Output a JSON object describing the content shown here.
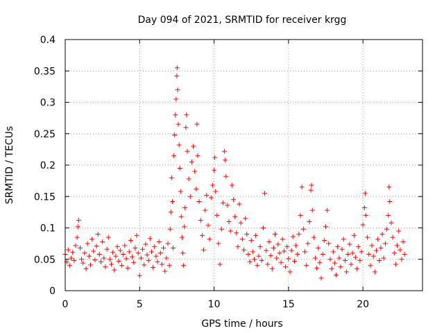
{
  "chart_data": {
    "type": "scatter",
    "title": "Day 094 of 2021, SRMTID for receiver krgg",
    "xlabel": "GPS time / hours",
    "ylabel": "SRMTID / TECUs",
    "xlim": [
      0,
      24
    ],
    "ylim": [
      0,
      0.4
    ],
    "x_ticks": [
      0,
      5,
      10,
      15,
      20
    ],
    "x_tick_labels": [
      "0",
      "5",
      "10",
      "15",
      "20"
    ],
    "y_ticks": [
      0,
      0.05,
      0.1,
      0.15,
      0.2,
      0.25,
      0.3,
      0.35,
      0.4
    ],
    "y_tick_labels": [
      "0",
      "0.05",
      "0.1",
      "0.15",
      "0.2",
      "0.25",
      "0.3",
      "0.35",
      "0.4"
    ],
    "grid": true,
    "marker": "+",
    "color": "#ff0000",
    "series": [
      {
        "name": "SRMTID krgg",
        "points": [
          [
            0.0,
            0.058
          ],
          [
            0.1,
            0.046
          ],
          [
            0.2,
            0.065
          ],
          [
            0.3,
            0.04
          ],
          [
            0.4,
            0.052
          ],
          [
            0.5,
            0.061
          ],
          [
            0.6,
            0.048
          ],
          [
            0.7,
            0.072
          ],
          [
            0.8,
            0.085
          ],
          [
            0.85,
            0.102
          ],
          [
            0.9,
            0.112
          ],
          [
            1.0,
            0.068
          ],
          [
            1.1,
            0.05
          ],
          [
            1.2,
            0.044
          ],
          [
            1.3,
            0.06
          ],
          [
            1.4,
            0.035
          ],
          [
            1.5,
            0.075
          ],
          [
            1.6,
            0.055
          ],
          [
            1.7,
            0.041
          ],
          [
            1.8,
            0.082
          ],
          [
            1.9,
            0.063
          ],
          [
            2.0,
            0.049
          ],
          [
            2.1,
            0.071
          ],
          [
            2.2,
            0.09
          ],
          [
            2.3,
            0.058
          ],
          [
            2.4,
            0.046
          ],
          [
            2.5,
            0.078
          ],
          [
            2.6,
            0.052
          ],
          [
            2.7,
            0.038
          ],
          [
            2.8,
            0.066
          ],
          [
            2.9,
            0.085
          ],
          [
            3.0,
            0.05
          ],
          [
            3.1,
            0.042
          ],
          [
            3.2,
            0.061
          ],
          [
            3.3,
            0.033
          ],
          [
            3.4,
            0.055
          ],
          [
            3.5,
            0.07
          ],
          [
            3.6,
            0.047
          ],
          [
            3.7,
            0.064
          ],
          [
            3.8,
            0.04
          ],
          [
            3.9,
            0.058
          ],
          [
            4.0,
            0.072
          ],
          [
            4.1,
            0.051
          ],
          [
            4.2,
            0.036
          ],
          [
            4.3,
            0.062
          ],
          [
            4.4,
            0.08
          ],
          [
            4.5,
            0.054
          ],
          [
            4.6,
            0.045
          ],
          [
            4.7,
            0.068
          ],
          [
            4.8,
            0.088
          ],
          [
            4.9,
            0.06
          ],
          [
            5.0,
            0.024
          ],
          [
            5.1,
            0.052
          ],
          [
            5.2,
            0.066
          ],
          [
            5.3,
            0.041
          ],
          [
            5.4,
            0.074
          ],
          [
            5.5,
            0.057
          ],
          [
            5.6,
            0.048
          ],
          [
            5.7,
            0.083
          ],
          [
            5.8,
            0.062
          ],
          [
            5.9,
            0.037
          ],
          [
            6.0,
            0.07
          ],
          [
            6.1,
            0.055
          ],
          [
            6.2,
            0.046
          ],
          [
            6.3,
            0.078
          ],
          [
            6.4,
            0.06
          ],
          [
            6.5,
            0.042
          ],
          [
            6.6,
            0.068
          ],
          [
            6.7,
            0.031
          ],
          [
            6.8,
            0.052
          ],
          [
            6.9,
            0.075
          ],
          [
            7.0,
            0.04
          ],
          [
            7.05,
            0.098
          ],
          [
            7.1,
            0.125
          ],
          [
            7.15,
            0.18
          ],
          [
            7.2,
            0.142
          ],
          [
            7.25,
            0.068
          ],
          [
            7.3,
            0.215
          ],
          [
            7.35,
            0.248
          ],
          [
            7.4,
            0.28
          ],
          [
            7.45,
            0.305
          ],
          [
            7.5,
            0.342
          ],
          [
            7.52,
            0.355
          ],
          [
            7.55,
            0.32
          ],
          [
            7.6,
            0.265
          ],
          [
            7.65,
            0.232
          ],
          [
            7.7,
            0.195
          ],
          [
            7.75,
            0.158
          ],
          [
            7.8,
            0.118
          ],
          [
            7.85,
            0.085
          ],
          [
            7.9,
            0.06
          ],
          [
            7.95,
            0.04
          ],
          [
            8.0,
            0.102
          ],
          [
            8.05,
            0.132
          ],
          [
            8.1,
            0.26
          ],
          [
            8.15,
            0.28
          ],
          [
            8.2,
            0.222
          ],
          [
            8.3,
            0.178
          ],
          [
            8.4,
            0.15
          ],
          [
            8.5,
            0.205
          ],
          [
            8.6,
            0.23
          ],
          [
            8.7,
            0.19
          ],
          [
            8.8,
            0.162
          ],
          [
            8.85,
            0.265
          ],
          [
            8.9,
            0.215
          ],
          [
            9.0,
            0.142
          ],
          [
            9.1,
            0.112
          ],
          [
            9.2,
            0.088
          ],
          [
            9.3,
            0.065
          ],
          [
            9.4,
            0.128
          ],
          [
            9.5,
            0.152
          ],
          [
            9.6,
            0.104
          ],
          [
            9.7,
            0.082
          ],
          [
            9.8,
            0.148
          ],
          [
            9.9,
            0.168
          ],
          [
            10.0,
            0.192
          ],
          [
            10.05,
            0.212
          ],
          [
            10.1,
            0.158
          ],
          [
            10.2,
            0.12
          ],
          [
            10.3,
            0.075
          ],
          [
            10.4,
            0.042
          ],
          [
            10.5,
            0.098
          ],
          [
            10.6,
            0.14
          ],
          [
            10.7,
            0.222
          ],
          [
            10.75,
            0.208
          ],
          [
            10.8,
            0.182
          ],
          [
            10.9,
            0.136
          ],
          [
            11.0,
            0.11
          ],
          [
            11.1,
            0.095
          ],
          [
            11.2,
            0.168
          ],
          [
            11.3,
            0.145
          ],
          [
            11.4,
            0.118
          ],
          [
            11.5,
            0.092
          ],
          [
            11.6,
            0.07
          ],
          [
            11.7,
            0.138
          ],
          [
            11.8,
            0.108
          ],
          [
            11.9,
            0.082
          ],
          [
            12.0,
            0.065
          ],
          [
            12.1,
            0.115
          ],
          [
            12.2,
            0.09
          ],
          [
            12.3,
            0.058
          ],
          [
            12.4,
            0.046
          ],
          [
            12.5,
            0.08
          ],
          [
            12.6,
            0.062
          ],
          [
            12.7,
            0.05
          ],
          [
            12.8,
            0.088
          ],
          [
            12.9,
            0.04
          ],
          [
            13.0,
            0.055
          ],
          [
            13.1,
            0.07
          ],
          [
            13.2,
            0.048
          ],
          [
            13.3,
            0.1
          ],
          [
            13.4,
            0.155
          ],
          [
            13.5,
            0.064
          ],
          [
            13.6,
            0.042
          ],
          [
            13.7,
            0.078
          ],
          [
            13.8,
            0.056
          ],
          [
            13.9,
            0.035
          ],
          [
            14.0,
            0.068
          ],
          [
            14.1,
            0.09
          ],
          [
            14.2,
            0.052
          ],
          [
            14.3,
            0.074
          ],
          [
            14.4,
            0.06
          ],
          [
            14.5,
            0.045
          ],
          [
            14.6,
            0.082
          ],
          [
            14.7,
            0.063
          ],
          [
            14.8,
            0.038
          ],
          [
            14.9,
            0.07
          ],
          [
            15.0,
            0.051
          ],
          [
            15.1,
            0.03
          ],
          [
            15.2,
            0.064
          ],
          [
            15.3,
            0.086
          ],
          [
            15.4,
            0.047
          ],
          [
            15.5,
            0.072
          ],
          [
            15.6,
            0.058
          ],
          [
            15.7,
            0.09
          ],
          [
            15.8,
            0.12
          ],
          [
            15.9,
            0.165
          ],
          [
            16.0,
            0.098
          ],
          [
            16.1,
            0.062
          ],
          [
            16.2,
            0.04
          ],
          [
            16.3,
            0.075
          ],
          [
            16.4,
            0.11
          ],
          [
            16.5,
            0.16
          ],
          [
            16.55,
            0.168
          ],
          [
            16.6,
            0.128
          ],
          [
            16.7,
            0.085
          ],
          [
            16.8,
            0.052
          ],
          [
            16.9,
            0.036
          ],
          [
            17.0,
            0.068
          ],
          [
            17.1,
            0.045
          ],
          [
            17.2,
            0.02
          ],
          [
            17.3,
            0.058
          ],
          [
            17.4,
            0.08
          ],
          [
            17.5,
            0.102
          ],
          [
            17.6,
            0.128
          ],
          [
            17.7,
            0.075
          ],
          [
            17.8,
            0.05
          ],
          [
            17.9,
            0.035
          ],
          [
            18.0,
            0.062
          ],
          [
            18.1,
            0.044
          ],
          [
            18.2,
            0.025
          ],
          [
            18.3,
            0.07
          ],
          [
            18.4,
            0.052
          ],
          [
            18.5,
            0.038
          ],
          [
            18.6,
            0.066
          ],
          [
            18.7,
            0.082
          ],
          [
            18.8,
            0.048
          ],
          [
            18.9,
            0.03
          ],
          [
            19.0,
            0.058
          ],
          [
            19.1,
            0.074
          ],
          [
            19.2,
            0.042
          ],
          [
            19.3,
            0.06
          ],
          [
            19.4,
            0.088
          ],
          [
            19.5,
            0.053
          ],
          [
            19.6,
            0.035
          ],
          [
            19.7,
            0.07
          ],
          [
            19.8,
            0.048
          ],
          [
            19.9,
            0.062
          ],
          [
            20.0,
            0.105
          ],
          [
            20.1,
            0.132
          ],
          [
            20.15,
            0.155
          ],
          [
            20.2,
            0.12
          ],
          [
            20.3,
            0.085
          ],
          [
            20.4,
            0.058
          ],
          [
            20.5,
            0.04
          ],
          [
            20.6,
            0.072
          ],
          [
            20.7,
            0.055
          ],
          [
            20.8,
            0.03
          ],
          [
            20.9,
            0.064
          ],
          [
            21.0,
            0.082
          ],
          [
            21.1,
            0.048
          ],
          [
            21.2,
            0.068
          ],
          [
            21.3,
            0.09
          ],
          [
            21.4,
            0.052
          ],
          [
            21.5,
            0.075
          ],
          [
            21.6,
            0.098
          ],
          [
            21.7,
            0.12
          ],
          [
            21.75,
            0.165
          ],
          [
            21.8,
            0.142
          ],
          [
            21.9,
            0.108
          ],
          [
            22.0,
            0.085
          ],
          [
            22.1,
            0.06
          ],
          [
            22.2,
            0.042
          ],
          [
            22.3,
            0.072
          ],
          [
            22.4,
            0.095
          ],
          [
            22.5,
            0.065
          ],
          [
            22.6,
            0.05
          ],
          [
            22.7,
            0.078
          ],
          [
            22.8,
            0.058
          ]
        ]
      }
    ]
  }
}
